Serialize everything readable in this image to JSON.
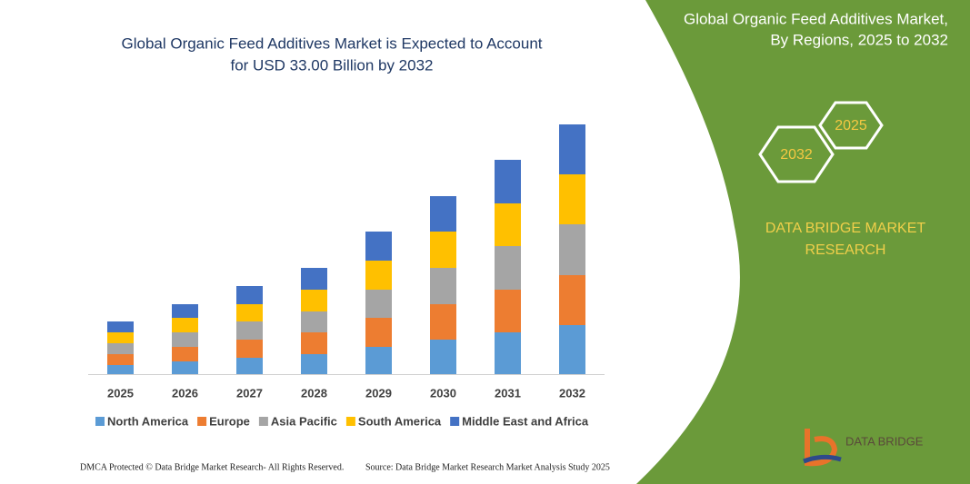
{
  "chart_data": {
    "type": "stacked-bar",
    "title": [
      "Global Organic Feed Additives Market is Expected to Account",
      "for USD 33.00 Billion by 2032"
    ],
    "categories": [
      "2025",
      "2026",
      "2027",
      "2028",
      "2029",
      "2030",
      "2031",
      "2032"
    ],
    "ylim": [
      0,
      300
    ],
    "series": [
      {
        "name": "North America",
        "color": "#5b9bd5",
        "values": [
          10,
          14,
          18,
          22,
          30,
          38,
          46,
          54
        ]
      },
      {
        "name": "Europe",
        "color": "#ed7d31",
        "values": [
          12,
          16,
          20,
          24,
          32,
          39,
          47,
          55
        ]
      },
      {
        "name": "Asia Pacific",
        "color": "#a5a5a5",
        "values": [
          12,
          16,
          20,
          23,
          31,
          40,
          48,
          56
        ]
      },
      {
        "name": "South America",
        "color": "#ffc000",
        "values": [
          12,
          16,
          19,
          24,
          32,
          40,
          47,
          55
        ]
      },
      {
        "name": "Middle East and Africa",
        "color": "#4472c4",
        "values": [
          12,
          15,
          20,
          24,
          32,
          39,
          48,
          55
        ]
      }
    ]
  },
  "panel": {
    "title": [
      "Global Organic Feed Additives Market,",
      "By Regions, 2025 to 2032"
    ],
    "hex_start": "2025",
    "hex_end": "2032",
    "brand": [
      "DATA BRIDGE MARKET",
      "RESEARCH"
    ],
    "logo": "DATA BRIDGE"
  },
  "footer": {
    "left": "DMCA Protected © Data Bridge Market Research-  All Rights Reserved.",
    "right": "Source: Data Bridge Market Research  Market Analysis Study 2025"
  }
}
